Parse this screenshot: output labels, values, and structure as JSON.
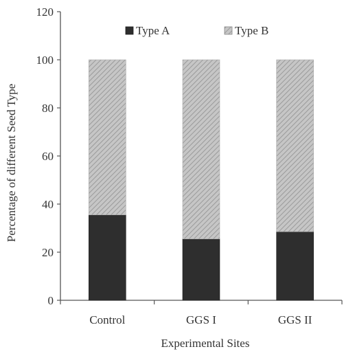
{
  "chart_data": {
    "type": "bar",
    "stacked": true,
    "title": "",
    "xlabel": "Experimental Sites",
    "ylabel": "Percentage of different Seed Type",
    "categories": [
      "Control",
      "GGS I",
      "GGS II"
    ],
    "series": [
      {
        "name": "Type A",
        "values": [
          35.5,
          25.5,
          28.5
        ],
        "color": "#2e2e2e",
        "pattern": "solid-dark"
      },
      {
        "name": "Type B",
        "values": [
          64.5,
          74.5,
          71.5
        ],
        "color": "#b9b9b9",
        "pattern": "diagonal-hatch"
      }
    ],
    "ylim": [
      0,
      120
    ],
    "yticks": [
      0,
      20,
      40,
      60,
      80,
      100,
      120
    ],
    "grid": false,
    "legend_position": "top"
  }
}
